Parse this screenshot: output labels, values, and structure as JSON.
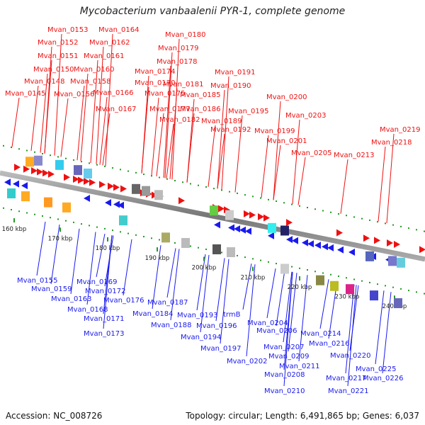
{
  "title": "Mycobacterium vanbaalenii PYR-1, complete genome",
  "accession_text": "Accession: NC_008726",
  "summary_text": "Topology: circular; Length: 6,491,865 bp; Genes: 6,037",
  "colors": {
    "forward": "#ee1111",
    "reverse": "#1a1aee",
    "backbone": "#8c8c8c",
    "ticks": "#229922"
  },
  "scale_ticks": [
    "160 kbp",
    "170 kbp",
    "180 kbp",
    "190 kbp",
    "200 kbp",
    "210 kbp",
    "220 kbp",
    "230 kbp",
    "240 kbp"
  ],
  "top_genes": [
    "Mvan_0145",
    "Mvan_0148",
    "Mvan_0150",
    "Mvan_0151",
    "Mvan_0152",
    "Mvan_0153",
    "Mvan_0156",
    "Mvan_0158",
    "Mvan_0160",
    "Mvan_0161",
    "Mvan_0162",
    "Mvan_0164",
    "Mvan_0166",
    "Mvan_0167",
    "Mvan_0170",
    "Mvan_0174",
    "Mvan_0175",
    "Mvan_0177",
    "Mvan_0178",
    "Mvan_0179",
    "Mvan_0180",
    "Mvan_0181",
    "Mvan_0182",
    "Mvan_0185",
    "Mvan_0186",
    "Mvan_0189",
    "Mvan_0190",
    "Mvan_0191",
    "Mvan_0192",
    "Mvan_0195",
    "Mvan_0199",
    "Mvan_0200",
    "Mvan_0201",
    "Mvan_0203",
    "Mvan_0205",
    "Mvan_0213",
    "Mvan_0218",
    "Mvan_0219"
  ],
  "bottom_genes": [
    "Mvan_0155",
    "Mvan_0159",
    "Mvan_0163",
    "Mvan_0168",
    "Mvan_0169",
    "Mvan_0171",
    "Mvan_0172",
    "Mvan_0173",
    "Mvan_0176",
    "Mvan_0184",
    "Mvan_0187",
    "Mvan_0188",
    "Mvan_0193",
    "Mvan_0194",
    "Mvan_0196",
    "Mvan_0197",
    "trmB",
    "Mvan_0202",
    "Mvan_0204",
    "Mvan_0206",
    "Mvan_0207",
    "Mvan_0208",
    "Mvan_0209",
    "Mvan_0210",
    "Mvan_0211",
    "Mvan_0214",
    "Mvan_0216",
    "Mvan_0217",
    "Mvan_0220",
    "Mvan_0221",
    "Mvan_0225",
    "Mvan_0226"
  ]
}
